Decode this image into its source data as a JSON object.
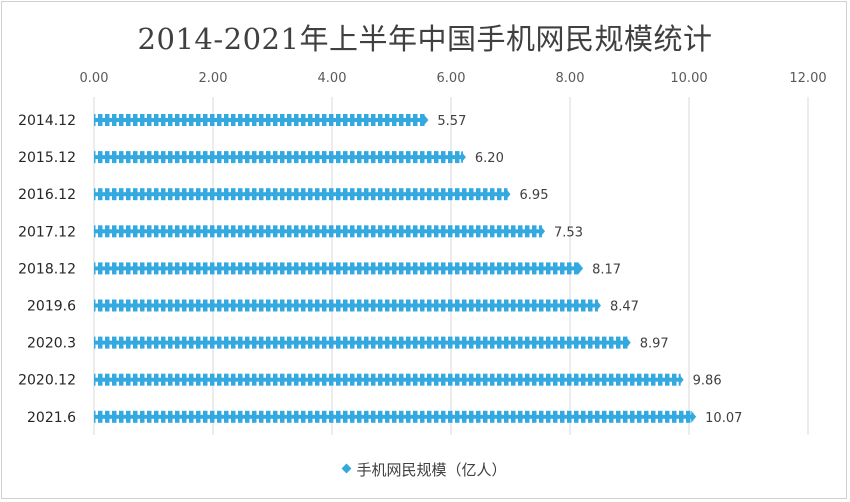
{
  "chart_data": {
    "type": "bar",
    "orientation": "horizontal",
    "title": "2014-2021年上半年中国手机网民规模统计",
    "categories": [
      "2014.12",
      "2015.12",
      "2016.12",
      "2017.12",
      "2018.12",
      "2019.6",
      "2020.3",
      "2020.12",
      "2021.6"
    ],
    "series": [
      {
        "name": "手机网民规模（亿人）",
        "values": [
          5.57,
          6.2,
          6.95,
          7.53,
          8.17,
          8.47,
          8.97,
          9.86,
          10.07
        ],
        "value_labels": [
          "5.57",
          "6.20",
          "6.95",
          "7.53",
          "8.17",
          "8.47",
          "8.97",
          "9.86",
          "10.07"
        ]
      }
    ],
    "xlim": [
      0,
      12
    ],
    "x_ticks": [
      0,
      2,
      4,
      6,
      8,
      10,
      12
    ],
    "x_tick_labels": [
      "0.00",
      "2.00",
      "4.00",
      "6.00",
      "8.00",
      "10.00",
      "12.00"
    ],
    "x_axis_position": "top",
    "grid": true,
    "legend_position": "bottom",
    "colors": {
      "bar": "#33a9e0",
      "grid": "#d9d9d9",
      "text": "#404040"
    }
  }
}
